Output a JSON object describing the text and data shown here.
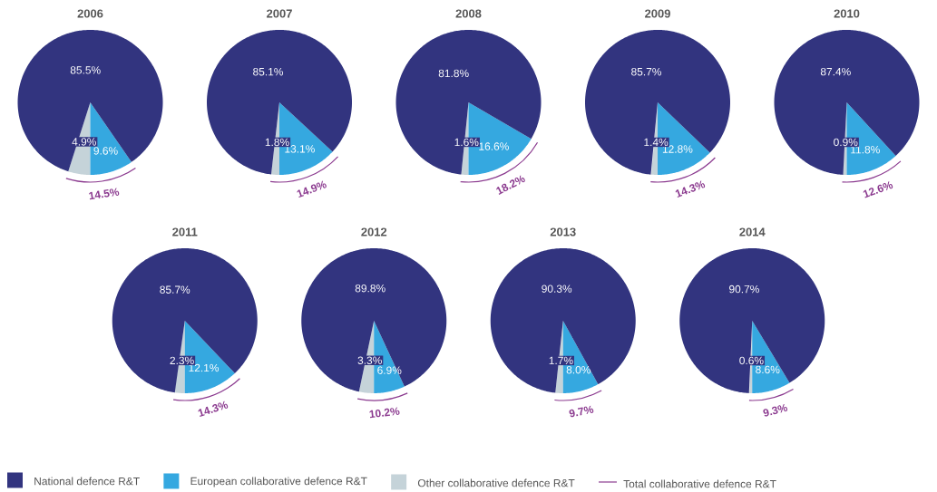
{
  "chart_data": [
    {
      "type": "pie",
      "title": "2006",
      "categories": [
        "National defence R&T",
        "European collaborative defence R&T",
        "Other collaborative defence R&T"
      ],
      "values": [
        85.5,
        9.6,
        4.9
      ],
      "value_labels": [
        "85.5%",
        "9.6%",
        "4.9%"
      ],
      "colors": [
        "#32347f",
        "#35a8e0",
        "#c5d3d9"
      ],
      "annotations": [
        "14.5%"
      ],
      "legend": "bottom"
    },
    {
      "type": "pie",
      "title": "2007",
      "categories": [
        null,
        null,
        null
      ],
      "values": [
        85.1,
        13.1,
        1.8
      ],
      "value_labels": [
        "85.1%",
        "13.1%",
        "1.8%"
      ],
      "colors": [
        "#32347f",
        "#35a8e0",
        "#c5d3d9"
      ],
      "annotations": [
        "14.9%"
      ]
    },
    {
      "type": "pie",
      "title": "2008",
      "categories": [
        null,
        null,
        null
      ],
      "values": [
        81.8,
        16.6,
        1.6
      ],
      "value_labels": [
        "81.8%",
        "16.6%",
        "1.6%"
      ],
      "colors": [
        "#32347f",
        "#35a8e0",
        "#c5d3d9"
      ],
      "annotations": [
        "18.2%"
      ]
    },
    {
      "type": "pie",
      "title": "2009",
      "categories": [
        null,
        null,
        null
      ],
      "values": [
        85.7,
        12.8,
        1.4
      ],
      "value_labels": [
        "85.7%",
        "12.8%",
        "1.4%"
      ],
      "colors": [
        "#32347f",
        "#35a8e0",
        "#c5d3d9"
      ],
      "annotations": [
        "14.3%"
      ]
    },
    {
      "type": "pie",
      "title": "2010",
      "categories": [
        null,
        null,
        null
      ],
      "values": [
        87.4,
        11.8,
        0.9
      ],
      "value_labels": [
        "87.4%",
        "11.8%",
        "0.9%"
      ],
      "colors": [
        "#32347f",
        "#35a8e0",
        "#c5d3d9"
      ],
      "annotations": [
        "12.6%"
      ]
    },
    {
      "type": "pie",
      "title": "2011",
      "categories": [
        null,
        null,
        null
      ],
      "values": [
        85.7,
        12.1,
        2.3
      ],
      "value_labels": [
        "85.7%",
        "12.1%",
        "2.3%"
      ],
      "colors": [
        "#32347f",
        "#35a8e0",
        "#c5d3d9"
      ],
      "annotations": [
        "14.3%"
      ]
    },
    {
      "type": "pie",
      "title": "2012",
      "categories": [
        null,
        null,
        null
      ],
      "values": [
        89.8,
        6.9,
        3.3
      ],
      "value_labels": [
        "89.8%",
        "6.9%",
        "3.3%"
      ],
      "colors": [
        "#32347f",
        "#35a8e0",
        "#c5d3d9"
      ],
      "annotations": [
        "10.2%"
      ]
    },
    {
      "type": "pie",
      "title": "2013",
      "categories": [
        null,
        null,
        null
      ],
      "values": [
        90.3,
        8.0,
        1.7
      ],
      "value_labels": [
        "90.3%",
        "8.0%",
        "1.7%"
      ],
      "colors": [
        "#32347f",
        "#35a8e0",
        "#c5d3d9"
      ],
      "annotations": [
        "9.7%"
      ]
    },
    {
      "type": "pie",
      "title": "2014",
      "categories": [
        null,
        null,
        null
      ],
      "values": [
        90.7,
        8.6,
        0.6
      ],
      "value_labels": [
        "90.7%",
        "8.6%",
        "0.6%"
      ],
      "colors": [
        "#32347f",
        "#35a8e0",
        "#c5d3d9"
      ],
      "annotations": [
        "9.3%"
      ]
    },
    {
      "type": "other",
      "annotations": [
        "Total collaborative defence R&T"
      ],
      "color": "#8b3a8f"
    }
  ]
}
